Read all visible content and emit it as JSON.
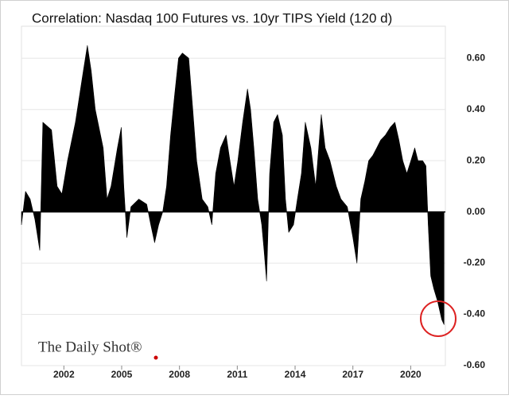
{
  "chart_data": {
    "type": "area",
    "title": "Correlation: Nasdaq 100 Futures vs. 10yr TIPS Yield (120 d)",
    "source": "The Daily Shot®",
    "color": "#000000",
    "grid": true,
    "xlim": [
      1999.8,
      2021.8
    ],
    "xticks": [
      2002,
      2005,
      2008,
      2011,
      2014,
      2017,
      2020
    ],
    "ylim": [
      -0.6,
      0.7
    ],
    "yticks": [
      {
        "value": -0.6,
        "label": "-0.60"
      },
      {
        "value": -0.4,
        "label": "-0.40"
      },
      {
        "value": -0.2,
        "label": "-0.20"
      },
      {
        "value": 0,
        "label": "0.00"
      },
      {
        "value": 0.2,
        "label": "0.20"
      },
      {
        "value": 0.4,
        "label": "0.40"
      },
      {
        "value": 0.6,
        "label": "0.60"
      }
    ],
    "x": [
      1999.8,
      2000.01,
      2000.25,
      2000.5,
      2000.75,
      2000.91,
      2001.36,
      2001.65,
      2001.9,
      2002.19,
      2002.6,
      2003.01,
      2003.22,
      2003.42,
      2003.63,
      2004.04,
      2004.24,
      2004.45,
      2004.78,
      2004.98,
      2005.11,
      2005.27,
      2005.48,
      2005.89,
      2006.3,
      2006.51,
      2006.71,
      2006.92,
      2007.13,
      2007.33,
      2007.54,
      2007.74,
      2007.95,
      2008.15,
      2008.48,
      2008.69,
      2008.89,
      2009.18,
      2009.47,
      2009.68,
      2009.88,
      2010.13,
      2010.42,
      2010.62,
      2010.83,
      2011.03,
      2011.28,
      2011.53,
      2011.69,
      2011.86,
      2012.06,
      2012.27,
      2012.39,
      2012.52,
      2012.68,
      2012.89,
      2013.09,
      2013.34,
      2013.5,
      2013.67,
      2013.92,
      2014.12,
      2014.33,
      2014.53,
      2014.82,
      2015.07,
      2015.36,
      2015.56,
      2015.81,
      2016.14,
      2016.38,
      2016.71,
      2017.0,
      2017.21,
      2017.41,
      2017.62,
      2017.82,
      2018.03,
      2018.24,
      2018.44,
      2018.69,
      2018.94,
      2019.18,
      2019.39,
      2019.59,
      2019.8,
      2020.01,
      2020.21,
      2020.38,
      2020.62,
      2020.79,
      2020.91,
      2021.04,
      2021.2,
      2021.4,
      2021.61,
      2021.73
    ],
    "values": [
      -0.05,
      0.08,
      0.05,
      -0.03,
      -0.15,
      0.35,
      0.32,
      0.1,
      0.07,
      0.2,
      0.35,
      0.55,
      0.65,
      0.55,
      0.4,
      0.25,
      0.05,
      0.1,
      0.25,
      0.33,
      0.1,
      -0.1,
      0.02,
      0.05,
      0.03,
      -0.05,
      -0.12,
      -0.05,
      0.0,
      0.1,
      0.3,
      0.45,
      0.6,
      0.62,
      0.6,
      0.4,
      0.2,
      0.05,
      0.02,
      -0.05,
      0.15,
      0.25,
      0.3,
      0.2,
      0.1,
      0.2,
      0.35,
      0.48,
      0.4,
      0.25,
      0.05,
      -0.05,
      -0.15,
      -0.27,
      0.15,
      0.35,
      0.38,
      0.3,
      0.05,
      -0.08,
      -0.05,
      0.05,
      0.15,
      0.35,
      0.25,
      0.1,
      0.38,
      0.25,
      0.2,
      0.1,
      0.05,
      0.02,
      -0.1,
      -0.2,
      0.05,
      0.12,
      0.2,
      0.22,
      0.25,
      0.28,
      0.3,
      0.33,
      0.35,
      0.28,
      0.2,
      0.15,
      0.2,
      0.25,
      0.2,
      0.2,
      0.18,
      -0.05,
      -0.25,
      -0.3,
      -0.35,
      -0.42,
      -0.44
    ]
  }
}
